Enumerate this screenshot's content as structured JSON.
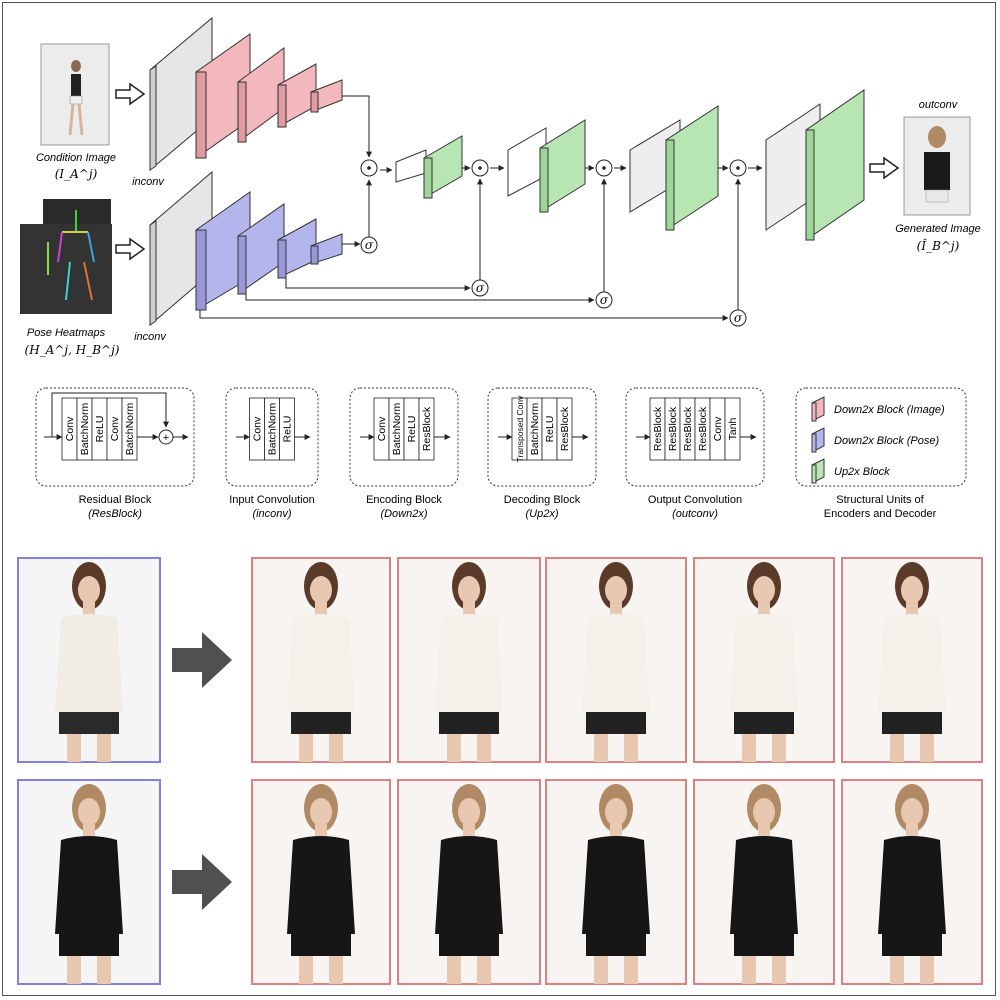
{
  "top": {
    "condition_image_label": "Condition Image",
    "condition_image_math": "(I_A^j)",
    "pose_heatmaps_label": "Pose Heatmaps",
    "pose_heatmaps_math": "(H_A^j, H_B^j)",
    "inconv_top": "inconv",
    "inconv_bottom": "inconv",
    "outconv_label": "outconv",
    "generated_image_label": "Generated Image",
    "generated_image_math": "(Î_B^j)",
    "gate_symbol": "σ",
    "product_symbol": "⊙"
  },
  "legend_blocks": [
    {
      "title": "Residual Block",
      "subtitle": "ResBlock",
      "layers": [
        "Conv",
        "BatchNorm",
        "ReLU",
        "Conv",
        "BatchNorm"
      ],
      "plus": "+"
    },
    {
      "title": "Input Convolution",
      "subtitle": "inconv",
      "layers": [
        "Conv",
        "BatchNorm",
        "ReLU"
      ]
    },
    {
      "title": "Encoding Block",
      "subtitle": "Down2x",
      "layers": [
        "Conv",
        "BatchNorm",
        "ReLU",
        "ResBlock"
      ]
    },
    {
      "title": "Decoding Block",
      "subtitle": "Up2x",
      "layers": [
        "Transposed Conv",
        "BatchNorm",
        "ReLU",
        "ResBlock"
      ]
    },
    {
      "title": "Output Convolution",
      "subtitle": "outconv",
      "layers": [
        "ResBlock",
        "ResBlock",
        "ResBlock",
        "ResBlock",
        "Conv",
        "Tanh"
      ]
    }
  ],
  "structural_units": {
    "title_line1": "Structural Units of",
    "title_line2": "Encoders and Decoder",
    "items": [
      {
        "label": "Down2x Block (Image)",
        "color": "#f2b8bd"
      },
      {
        "label": "Down2x Block (Pose)",
        "color": "#b5b5ee"
      },
      {
        "label": "Up2x Block",
        "color": "#b8e6b3"
      }
    ]
  },
  "colors": {
    "image_block": "#f2b8bd",
    "pose_block": "#b5b5ee",
    "up_block": "#b8e6b3",
    "inconv_block": "#e6e6e6",
    "input_frame": "#8080e0",
    "output_frame": "#e08080",
    "arrow": "#555555"
  }
}
